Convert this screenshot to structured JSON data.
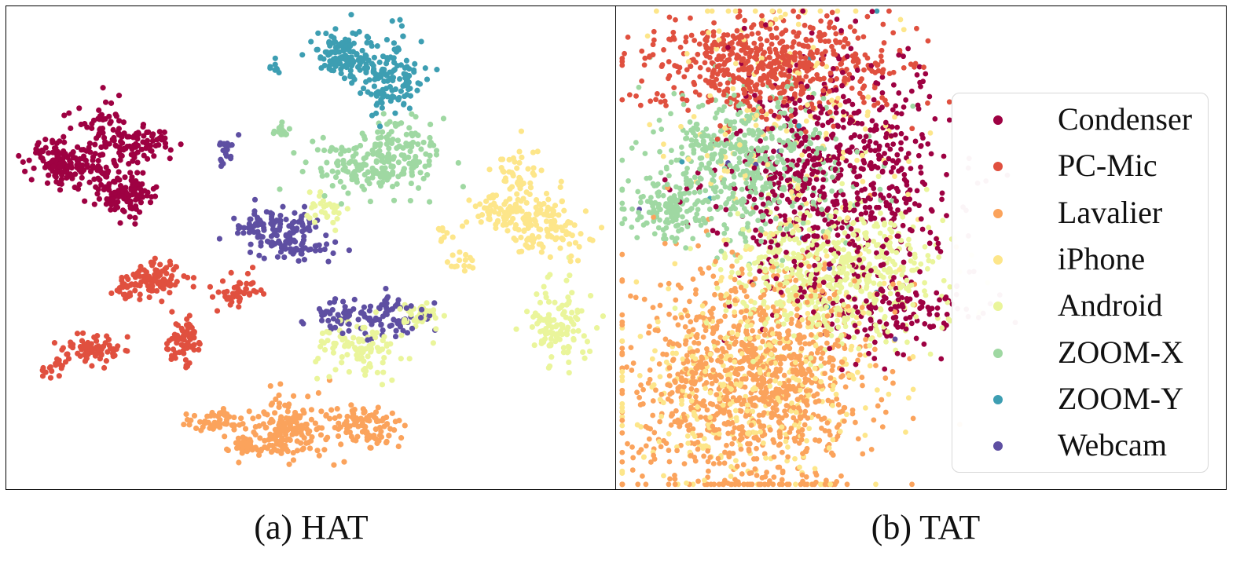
{
  "captions": {
    "a": "(a) HAT",
    "b": "(b) TAT"
  },
  "legend": [
    {
      "label": "Condenser",
      "color": "#9e0142"
    },
    {
      "label": "PC-Mic",
      "color": "#e0503f"
    },
    {
      "label": "Lavalier",
      "color": "#fba35c"
    },
    {
      "label": "iPhone",
      "color": "#fde68a"
    },
    {
      "label": "Android",
      "color": "#eaf59b"
    },
    {
      "label": "ZOOM-X",
      "color": "#9fd8a2"
    },
    {
      "label": "ZOOM-Y",
      "color": "#3d9eb2"
    },
    {
      "label": "Webcam",
      "color": "#5e4fa2"
    }
  ],
  "chart_data": [
    {
      "type": "scatter",
      "title": "(a) HAT",
      "xlabel": "",
      "ylabel": "",
      "axes_ticks": false,
      "grid": false,
      "series": [
        {
          "name": "Condenser",
          "color": "#9e0142",
          "clusters": [
            {
              "cx": 0.09,
              "cy": 0.32,
              "sx": 0.03,
              "sy": 0.025,
              "n": 140
            },
            {
              "cx": 0.16,
              "cy": 0.27,
              "sx": 0.025,
              "sy": 0.04,
              "n": 80
            },
            {
              "cx": 0.22,
              "cy": 0.29,
              "sx": 0.025,
              "sy": 0.02,
              "n": 70
            },
            {
              "cx": 0.19,
              "cy": 0.39,
              "sx": 0.025,
              "sy": 0.02,
              "n": 120
            }
          ]
        },
        {
          "name": "PC-Mic",
          "color": "#e0503f",
          "clusters": [
            {
              "cx": 0.25,
              "cy": 0.56,
              "sx": 0.025,
              "sy": 0.02,
              "n": 80
            },
            {
              "cx": 0.21,
              "cy": 0.58,
              "sx": 0.02,
              "sy": 0.015,
              "n": 30
            },
            {
              "cx": 0.38,
              "cy": 0.59,
              "sx": 0.015,
              "sy": 0.02,
              "n": 50
            },
            {
              "cx": 0.29,
              "cy": 0.69,
              "sx": 0.015,
              "sy": 0.025,
              "n": 70
            },
            {
              "cx": 0.14,
              "cy": 0.71,
              "sx": 0.025,
              "sy": 0.015,
              "n": 80
            },
            {
              "cx": 0.08,
              "cy": 0.75,
              "sx": 0.015,
              "sy": 0.01,
              "n": 15
            }
          ]
        },
        {
          "name": "Lavalier",
          "color": "#fba35c",
          "clusters": [
            {
              "cx": 0.46,
              "cy": 0.88,
              "sx": 0.035,
              "sy": 0.035,
              "n": 170
            },
            {
              "cx": 0.34,
              "cy": 0.86,
              "sx": 0.025,
              "sy": 0.015,
              "n": 50
            },
            {
              "cx": 0.39,
              "cy": 0.91,
              "sx": 0.02,
              "sy": 0.01,
              "n": 30
            },
            {
              "cx": 0.58,
              "cy": 0.87,
              "sx": 0.03,
              "sy": 0.025,
              "n": 100
            }
          ]
        },
        {
          "name": "iPhone",
          "color": "#fde68a",
          "clusters": [
            {
              "cx": 0.84,
              "cy": 0.35,
              "sx": 0.02,
              "sy": 0.035,
              "n": 50
            },
            {
              "cx": 0.82,
              "cy": 0.43,
              "sx": 0.03,
              "sy": 0.02,
              "n": 70
            },
            {
              "cx": 0.89,
              "cy": 0.46,
              "sx": 0.035,
              "sy": 0.03,
              "n": 110
            },
            {
              "cx": 0.75,
              "cy": 0.53,
              "sx": 0.01,
              "sy": 0.015,
              "n": 15
            },
            {
              "cx": 0.72,
              "cy": 0.47,
              "sx": 0.01,
              "sy": 0.01,
              "n": 10
            }
          ]
        },
        {
          "name": "Android",
          "color": "#eaf59b",
          "clusters": [
            {
              "cx": 0.91,
              "cy": 0.66,
              "sx": 0.025,
              "sy": 0.04,
              "n": 110
            },
            {
              "cx": 0.58,
              "cy": 0.71,
              "sx": 0.035,
              "sy": 0.03,
              "n": 100
            },
            {
              "cx": 0.68,
              "cy": 0.64,
              "sx": 0.02,
              "sy": 0.012,
              "n": 40
            },
            {
              "cx": 0.52,
              "cy": 0.42,
              "sx": 0.015,
              "sy": 0.015,
              "n": 30
            }
          ]
        },
        {
          "name": "ZOOM-X",
          "color": "#9fd8a2",
          "clusters": [
            {
              "cx": 0.6,
              "cy": 0.33,
              "sx": 0.055,
              "sy": 0.03,
              "n": 180
            },
            {
              "cx": 0.65,
              "cy": 0.27,
              "sx": 0.025,
              "sy": 0.025,
              "n": 50
            },
            {
              "cx": 0.46,
              "cy": 0.26,
              "sx": 0.01,
              "sy": 0.01,
              "n": 15
            }
          ]
        },
        {
          "name": "ZOOM-Y",
          "color": "#3d9eb2",
          "clusters": [
            {
              "cx": 0.55,
              "cy": 0.1,
              "sx": 0.025,
              "sy": 0.025,
              "n": 120
            },
            {
              "cx": 0.63,
              "cy": 0.15,
              "sx": 0.025,
              "sy": 0.04,
              "n": 130
            },
            {
              "cx": 0.44,
              "cy": 0.13,
              "sx": 0.008,
              "sy": 0.008,
              "n": 8
            }
          ]
        },
        {
          "name": "Webcam",
          "color": "#5e4fa2",
          "clusters": [
            {
              "cx": 0.44,
              "cy": 0.46,
              "sx": 0.035,
              "sy": 0.02,
              "n": 110
            },
            {
              "cx": 0.48,
              "cy": 0.5,
              "sx": 0.035,
              "sy": 0.01,
              "n": 50
            },
            {
              "cx": 0.6,
              "cy": 0.64,
              "sx": 0.05,
              "sy": 0.02,
              "n": 120
            },
            {
              "cx": 0.36,
              "cy": 0.3,
              "sx": 0.008,
              "sy": 0.015,
              "n": 20
            }
          ]
        }
      ]
    },
    {
      "type": "scatter",
      "title": "(b) TAT",
      "xlabel": "",
      "ylabel": "",
      "axes_ticks": false,
      "grid": false,
      "legend_position": "right",
      "series": [
        {
          "name": "Condenser",
          "color": "#9e0142",
          "clusters": [
            {
              "cx": 0.36,
              "cy": 0.36,
              "sx": 0.09,
              "sy": 0.13,
              "n": 700
            },
            {
              "cx": 0.46,
              "cy": 0.64,
              "sx": 0.06,
              "sy": 0.04,
              "n": 120
            }
          ]
        },
        {
          "name": "PC-Mic",
          "color": "#e0503f",
          "clusters": [
            {
              "cx": 0.25,
              "cy": 0.12,
              "sx": 0.1,
              "sy": 0.05,
              "n": 600
            }
          ]
        },
        {
          "name": "Lavalier",
          "color": "#fba35c",
          "clusters": [
            {
              "cx": 0.22,
              "cy": 0.78,
              "sx": 0.1,
              "sy": 0.12,
              "n": 1100
            }
          ]
        },
        {
          "name": "iPhone",
          "color": "#fde68a",
          "clusters": [
            {
              "cx": 0.22,
              "cy": 0.8,
              "sx": 0.1,
              "sy": 0.1,
              "n": 350
            },
            {
              "cx": 0.28,
              "cy": 0.3,
              "sx": 0.1,
              "sy": 0.2,
              "n": 200
            }
          ]
        },
        {
          "name": "Android",
          "color": "#eaf59b",
          "clusters": [
            {
              "cx": 0.36,
              "cy": 0.56,
              "sx": 0.09,
              "sy": 0.07,
              "n": 600
            }
          ]
        },
        {
          "name": "ZOOM-X",
          "color": "#9fd8a2",
          "clusters": [
            {
              "cx": 0.22,
              "cy": 0.33,
              "sx": 0.08,
              "sy": 0.08,
              "n": 500
            },
            {
              "cx": 0.08,
              "cy": 0.42,
              "sx": 0.03,
              "sy": 0.03,
              "n": 120
            }
          ]
        },
        {
          "name": "ZOOM-Y",
          "color": "#3d9eb2",
          "clusters": [
            {
              "cx": 0.3,
              "cy": 0.4,
              "sx": 0.1,
              "sy": 0.15,
              "n": 8
            }
          ]
        },
        {
          "name": "Webcam",
          "color": "#5e4fa2",
          "clusters": [
            {
              "cx": 0.3,
              "cy": 0.4,
              "sx": 0.1,
              "sy": 0.15,
              "n": 6
            }
          ]
        }
      ]
    }
  ]
}
